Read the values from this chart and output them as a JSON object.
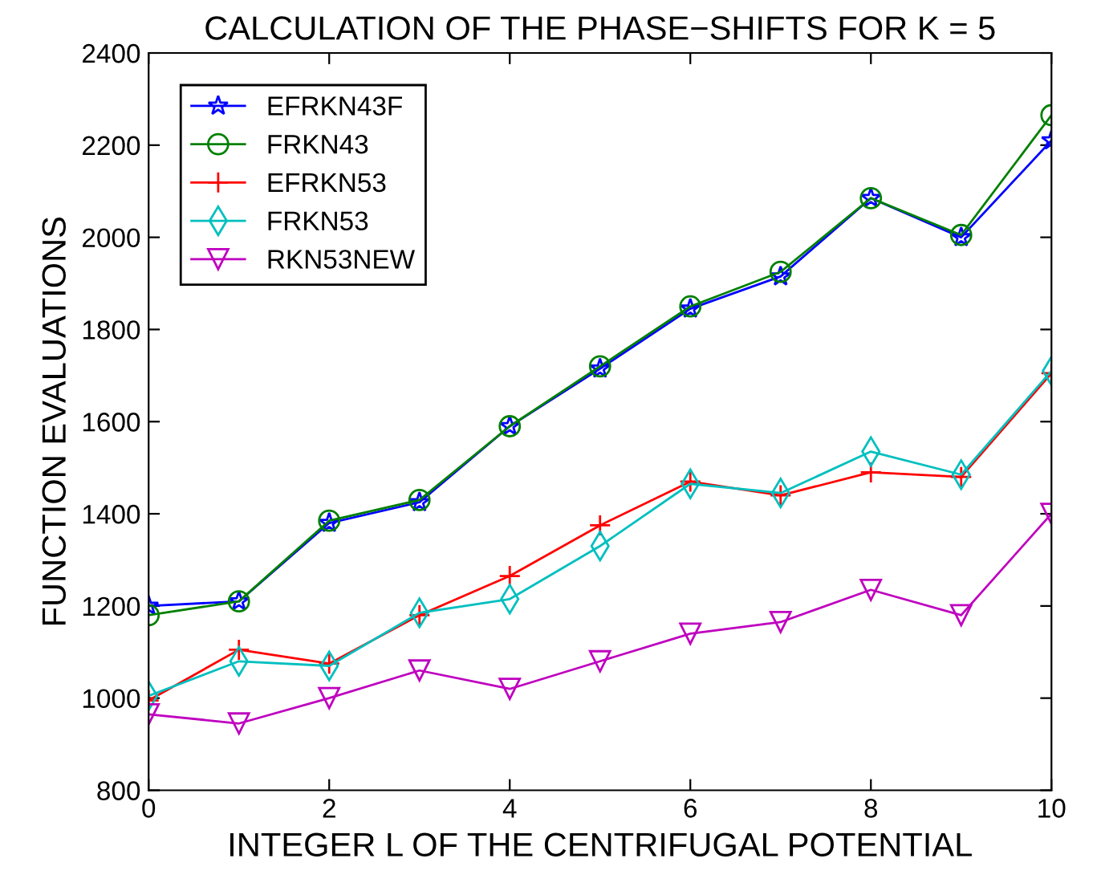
{
  "chart_data": {
    "type": "line",
    "title": "CALCULATION OF THE PHASE−SHIFTS FOR K = 5",
    "xlabel": "INTEGER L OF THE CENTRIFUGAL POTENTIAL",
    "ylabel": "FUNCTION EVALUATIONS",
    "x": [
      0,
      1,
      2,
      3,
      4,
      5,
      6,
      7,
      8,
      9,
      10
    ],
    "series": [
      {
        "name": "EFRKN43F",
        "color": "#0000ff",
        "marker": "star",
        "values": [
          1200,
          1210,
          1380,
          1425,
          1590,
          1715,
          1845,
          1915,
          2085,
          2000,
          2210
        ]
      },
      {
        "name": "FRKN43",
        "color": "#008000",
        "marker": "circle",
        "values": [
          1180,
          1210,
          1385,
          1430,
          1590,
          1720,
          1850,
          1925,
          2085,
          2005,
          2265
        ]
      },
      {
        "name": "EFRKN53",
        "color": "#ff0000",
        "marker": "cross",
        "values": [
          995,
          1105,
          1075,
          1180,
          1265,
          1375,
          1470,
          1440,
          1490,
          1480,
          1705
        ]
      },
      {
        "name": "FRKN53",
        "color": "#00bfbf",
        "marker": "diamond",
        "values": [
          1005,
          1080,
          1070,
          1185,
          1215,
          1330,
          1465,
          1445,
          1535,
          1485,
          1710
        ]
      },
      {
        "name": "RKN53NEW",
        "color": "#bf00bf",
        "marker": "triangle",
        "values": [
          965,
          945,
          1000,
          1060,
          1020,
          1080,
          1140,
          1165,
          1235,
          1180,
          1400
        ]
      }
    ],
    "xlim": [
      0,
      10
    ],
    "xticks": [
      0,
      2,
      4,
      6,
      8,
      10
    ],
    "ylim": [
      800,
      2400
    ],
    "yticks": [
      800,
      1000,
      1200,
      1400,
      1600,
      1800,
      2000,
      2200,
      2400
    ],
    "grid": false,
    "legend": "top left"
  }
}
